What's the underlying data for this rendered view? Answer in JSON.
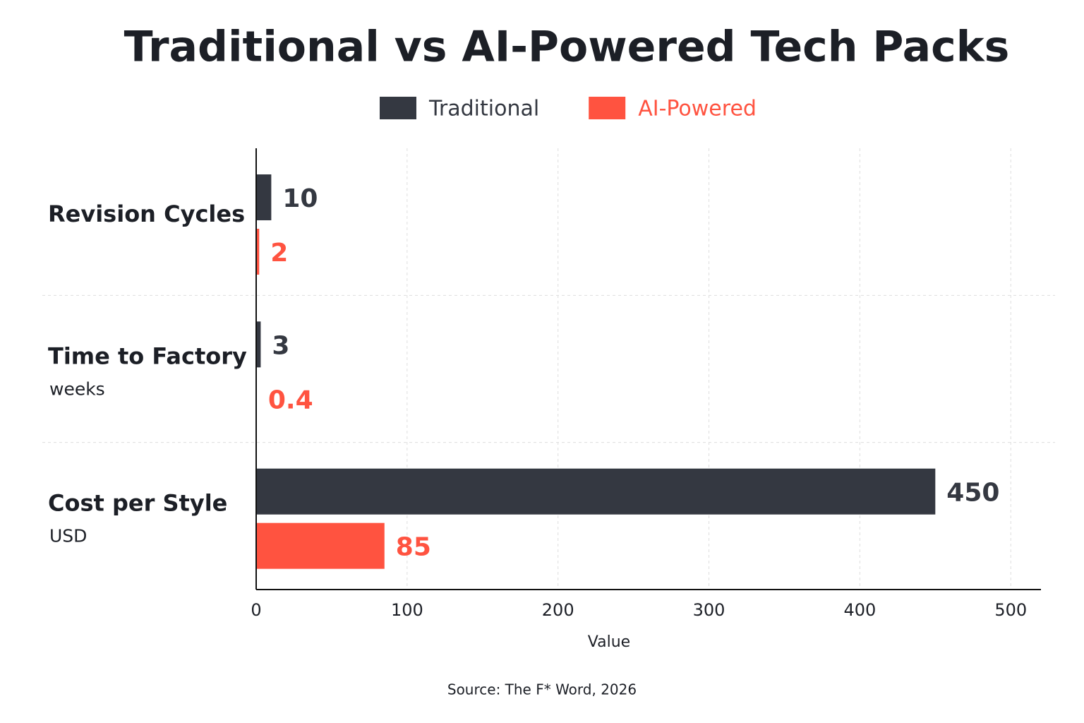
{
  "chart_data": {
    "type": "bar",
    "orientation": "horizontal",
    "title": "Traditional vs AI-Powered Tech Packs",
    "categories": [
      "Revision Cycles",
      "Time to Factory",
      "Cost per Style"
    ],
    "category_units": [
      null,
      "weeks",
      "USD"
    ],
    "series": [
      {
        "name": "Traditional",
        "color": "#343841",
        "values": [
          10,
          3,
          450
        ]
      },
      {
        "name": "AI-Powered",
        "color": "#ff5340",
        "values": [
          2,
          0.4,
          85
        ]
      }
    ],
    "xlim": [
      0,
      520
    ],
    "xticks": [
      0,
      100,
      200,
      300,
      400,
      500
    ],
    "x_label": "Value",
    "grid": true,
    "legend": "top",
    "source": "Source: The F* Word, 2026"
  }
}
